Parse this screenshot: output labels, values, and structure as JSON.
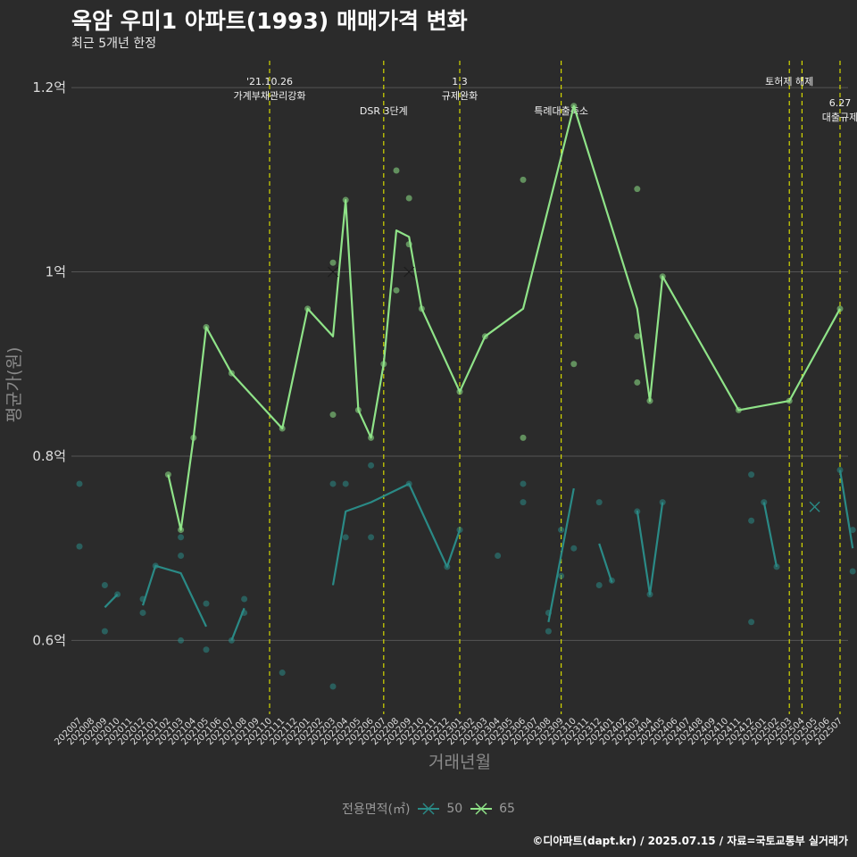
{
  "title": "옥암 우미1 아파트(1993) 매매가격 변화",
  "subtitle": "최근 5개년 한정",
  "caption": "©디아파트(dapt.kr) / 2025.07.15 / 자료=국토교통부 실거래가",
  "colors": {
    "background": "#2b2b2b",
    "grid": "#555555",
    "s50": "#2a8a86",
    "s65": "#8fe388",
    "event_line": "#d4d800",
    "axis_text": "#dddddd",
    "axis_title": "#8a8a8a"
  },
  "chart_data": {
    "type": "line",
    "xlabel": "거래년월",
    "ylabel": "평균가(원)",
    "ylim": [
      0.52,
      1.235
    ],
    "yticks": [
      {
        "v": 0.6,
        "label": "0.6억"
      },
      {
        "v": 0.8,
        "label": "0.8억"
      },
      {
        "v": 1.0,
        "label": "1억"
      },
      {
        "v": 1.2,
        "label": "1.2억"
      }
    ],
    "categories": [
      "202007",
      "202008",
      "202009",
      "202010",
      "202011",
      "202012",
      "202101",
      "202102",
      "202103",
      "202104",
      "202105",
      "202106",
      "202107",
      "202108",
      "202109",
      "202110",
      "202111",
      "202112",
      "202201",
      "202202",
      "202203",
      "202204",
      "202205",
      "202206",
      "202207",
      "202208",
      "202209",
      "202210",
      "202211",
      "202212",
      "202301",
      "202302",
      "202303",
      "202304",
      "202305",
      "202306",
      "202307",
      "202308",
      "202309",
      "202310",
      "202311",
      "202312",
      "202401",
      "202402",
      "202403",
      "202404",
      "202405",
      "202406",
      "202407",
      "202408",
      "202409",
      "202410",
      "202411",
      "202412",
      "202501",
      "202502",
      "202503",
      "202504",
      "202505",
      "202506",
      "202507"
    ],
    "legend": {
      "title": "전용면적(㎡)",
      "entries": [
        "50",
        "65"
      ]
    },
    "events": [
      {
        "at": 15,
        "lines": [
          "'21.10.26",
          "가계부채관리강화"
        ],
        "row": 0
      },
      {
        "at": 24,
        "lines": [
          "DSR 3단계"
        ],
        "row": 1
      },
      {
        "at": 30,
        "lines": [
          "1.3",
          "규제완화"
        ],
        "row": 0
      },
      {
        "at": 38,
        "lines": [
          "특례대출축소"
        ],
        "row": 1
      },
      {
        "at": 56,
        "lines": [
          "토허제 해제"
        ],
        "row": 0
      },
      {
        "at": 57,
        "lines": [],
        "row": 0
      },
      {
        "at": 60,
        "lines": [
          "6.27",
          "대출규제"
        ],
        "row": 2
      }
    ],
    "series": [
      {
        "name": "50",
        "color": "#2a8a86",
        "line_segments": [
          [
            [
              2,
              0.636
            ],
            [
              3,
              0.65
            ]
          ],
          [
            [
              5,
              0.638
            ],
            [
              6,
              0.681
            ],
            [
              8,
              0.673
            ],
            [
              10,
              0.615
            ]
          ],
          [
            [
              12,
              0.6
            ],
            [
              13,
              0.635
            ]
          ],
          [
            [
              20,
              0.66
            ],
            [
              21,
              0.74
            ],
            [
              23,
              0.75
            ],
            [
              26,
              0.77
            ],
            [
              29,
              0.68
            ],
            [
              30,
              0.72
            ]
          ],
          [
            [
              37,
              0.62
            ],
            [
              39,
              0.765
            ]
          ],
          [
            [
              41,
              0.705
            ],
            [
              42,
              0.663
            ]
          ],
          [
            [
              44,
              0.741
            ],
            [
              45,
              0.65
            ],
            [
              46,
              0.75
            ]
          ],
          [
            [
              54,
              0.75
            ],
            [
              55,
              0.68
            ]
          ],
          [
            [
              60,
              0.785
            ],
            [
              61,
              0.7
            ]
          ]
        ],
        "points": [
          [
            0,
            0.77
          ],
          [
            0,
            0.702
          ],
          [
            2,
            0.66
          ],
          [
            2,
            0.61
          ],
          [
            3,
            0.65
          ],
          [
            5,
            0.645
          ],
          [
            5,
            0.63
          ],
          [
            6,
            0.681
          ],
          [
            8,
            0.712
          ],
          [
            8,
            0.692
          ],
          [
            8,
            0.6
          ],
          [
            10,
            0.64
          ],
          [
            10,
            0.59
          ],
          [
            12,
            0.6
          ],
          [
            13,
            0.645
          ],
          [
            13,
            0.63
          ],
          [
            16,
            0.565
          ],
          [
            20,
            0.77
          ],
          [
            20,
            0.55
          ],
          [
            21,
            0.77
          ],
          [
            21,
            0.712
          ],
          [
            23,
            0.79
          ],
          [
            23,
            0.712
          ],
          [
            26,
            0.77
          ],
          [
            29,
            0.68
          ],
          [
            30,
            0.72
          ],
          [
            33,
            0.692
          ],
          [
            35,
            0.77
          ],
          [
            35,
            0.75
          ],
          [
            37,
            0.63
          ],
          [
            37,
            0.61
          ],
          [
            38,
            0.72
          ],
          [
            38,
            0.67
          ],
          [
            39,
            0.7
          ],
          [
            41,
            0.75
          ],
          [
            41,
            0.66
          ],
          [
            42,
            0.665
          ],
          [
            44,
            0.74
          ],
          [
            45,
            0.65
          ],
          [
            46,
            0.75
          ],
          [
            53,
            0.78
          ],
          [
            53,
            0.73
          ],
          [
            53,
            0.62
          ],
          [
            54,
            0.75
          ],
          [
            55,
            0.68
          ],
          [
            60,
            0.785
          ],
          [
            61,
            0.72
          ],
          [
            61,
            0.675
          ]
        ],
        "cross_markers": [
          [
            58,
            0.745
          ]
        ]
      },
      {
        "name": "65",
        "color": "#8fe388",
        "line_segments": [
          [
            [
              7,
              0.78
            ],
            [
              8,
              0.72
            ],
            [
              9,
              0.82
            ],
            [
              10,
              0.94
            ],
            [
              12,
              0.89
            ],
            [
              16,
              0.83
            ],
            [
              18,
              0.96
            ],
            [
              20,
              0.93
            ],
            [
              21,
              1.078
            ],
            [
              22,
              0.85
            ],
            [
              23,
              0.82
            ],
            [
              24,
              0.9
            ],
            [
              25,
              1.045
            ],
            [
              26,
              1.038
            ],
            [
              27,
              0.96
            ],
            [
              30,
              0.87
            ],
            [
              32,
              0.93
            ],
            [
              35,
              0.96
            ],
            [
              39,
              1.18
            ],
            [
              44,
              0.96
            ],
            [
              45,
              0.86
            ],
            [
              46,
              0.995
            ],
            [
              52,
              0.85
            ],
            [
              56,
              0.86
            ],
            [
              60,
              0.96
            ]
          ]
        ],
        "points": [
          [
            7,
            0.78
          ],
          [
            8,
            0.72
          ],
          [
            9,
            0.82
          ],
          [
            10,
            0.94
          ],
          [
            12,
            0.89
          ],
          [
            16,
            0.83
          ],
          [
            18,
            0.96
          ],
          [
            20,
            1.01
          ],
          [
            20,
            0.845
          ],
          [
            21,
            1.078
          ],
          [
            22,
            0.85
          ],
          [
            23,
            0.82
          ],
          [
            24,
            0.9
          ],
          [
            25,
            1.11
          ],
          [
            25,
            0.98
          ],
          [
            26,
            1.08
          ],
          [
            26,
            1.03
          ],
          [
            27,
            0.96
          ],
          [
            30,
            0.87
          ],
          [
            32,
            0.93
          ],
          [
            35,
            1.1
          ],
          [
            35,
            0.82
          ],
          [
            39,
            1.18
          ],
          [
            39,
            0.9
          ],
          [
            44,
            1.09
          ],
          [
            44,
            0.93
          ],
          [
            44,
            0.88
          ],
          [
            45,
            0.86
          ],
          [
            46,
            0.995
          ],
          [
            52,
            0.85
          ],
          [
            56,
            0.86
          ],
          [
            60,
            0.96
          ]
        ],
        "cross_markers": [
          [
            20,
            1.0
          ],
          [
            26,
            1.0
          ]
        ]
      }
    ]
  }
}
